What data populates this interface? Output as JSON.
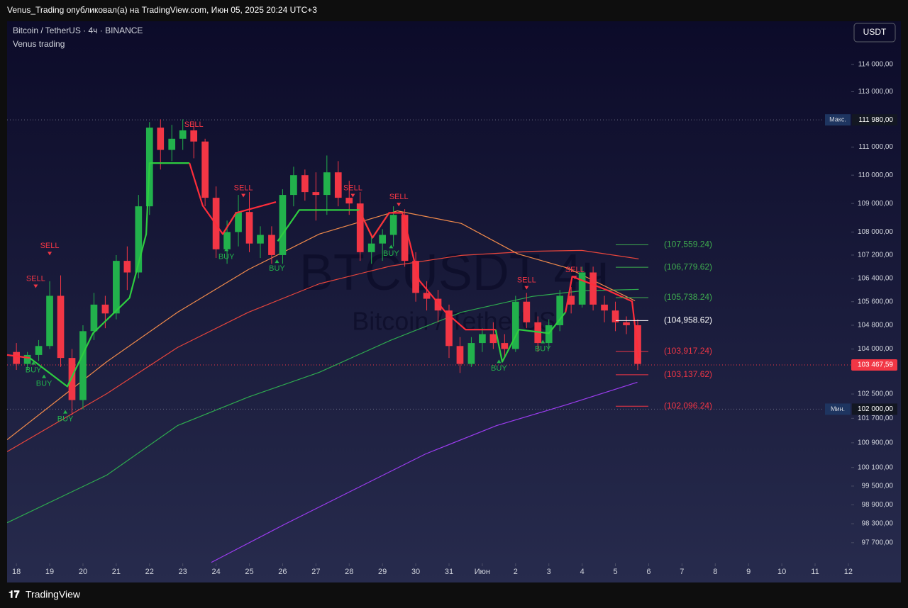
{
  "header": {
    "text": "Venus_Trading опубликовал(а) на TradingView.com, Июн 05, 2025 20:24 UTC+3"
  },
  "footer": {
    "brand": "TradingView"
  },
  "chart_data": {
    "type": "candlestick",
    "title": "Bitcoin / TetherUS · 4ч · BINANCE",
    "subtitle": "Venus trading",
    "currency": "USDT",
    "watermark": "BTCUSDT 4ч",
    "watermark_sub": "Bitcoin / TetherUS",
    "log_scale": true,
    "xlim": [
      -0.28,
      25.3
    ],
    "ylim": [
      97050,
      115600
    ],
    "xticks": [
      {
        "value": 0,
        "label": "18"
      },
      {
        "value": 1,
        "label": "19"
      },
      {
        "value": 2,
        "label": "20"
      },
      {
        "value": 3,
        "label": "21"
      },
      {
        "value": 4,
        "label": "22"
      },
      {
        "value": 5,
        "label": "23"
      },
      {
        "value": 6,
        "label": "24"
      },
      {
        "value": 7,
        "label": "25"
      },
      {
        "value": 8,
        "label": "26"
      },
      {
        "value": 9,
        "label": "27"
      },
      {
        "value": 10,
        "label": "28"
      },
      {
        "value": 11,
        "label": "29"
      },
      {
        "value": 12,
        "label": "30"
      },
      {
        "value": 13,
        "label": "31"
      },
      {
        "value": 14,
        "label": "Июн"
      },
      {
        "value": 15,
        "label": "2"
      },
      {
        "value": 16,
        "label": "3"
      },
      {
        "value": 17,
        "label": "4"
      },
      {
        "value": 18,
        "label": "5"
      },
      {
        "value": 19,
        "label": "6"
      },
      {
        "value": 20,
        "label": "7"
      },
      {
        "value": 21,
        "label": "8"
      },
      {
        "value": 22,
        "label": "9"
      },
      {
        "value": 23,
        "label": "10"
      },
      {
        "value": 24,
        "label": "11"
      },
      {
        "value": 25,
        "label": "12"
      }
    ],
    "yticks": [
      {
        "value": 114000,
        "label": "114 000,00"
      },
      {
        "value": 113000,
        "label": "113 000,00"
      },
      {
        "value": 111000,
        "label": "111 000,00"
      },
      {
        "value": 110000,
        "label": "110 000,00"
      },
      {
        "value": 109000,
        "label": "109 000,00"
      },
      {
        "value": 108000,
        "label": "108 000,00"
      },
      {
        "value": 107200,
        "label": "107 200,00"
      },
      {
        "value": 106400,
        "label": "106 400,00"
      },
      {
        "value": 105600,
        "label": "105 600,00"
      },
      {
        "value": 104800,
        "label": "104 800,00"
      },
      {
        "value": 104000,
        "label": "104 000,00"
      },
      {
        "value": 102500,
        "label": "102 500,00"
      },
      {
        "value": 101700,
        "label": "101 700,00"
      },
      {
        "value": 100900,
        "label": "100 900,00"
      },
      {
        "value": 100100,
        "label": "100 100,00"
      },
      {
        "value": 99500,
        "label": "99 500,00"
      },
      {
        "value": 98900,
        "label": "98 900,00"
      },
      {
        "value": 98300,
        "label": "98 300,00"
      },
      {
        "value": 97700,
        "label": "97 700,00"
      }
    ],
    "up_color": "#22b14c",
    "down_color": "#f23645",
    "candles": {
      "x": [
        0,
        0.33,
        0.67,
        1,
        1.33,
        1.67,
        2,
        2.33,
        2.67,
        3,
        3.33,
        3.67,
        4,
        4.33,
        4.67,
        5,
        5.33,
        5.67,
        6,
        6.33,
        6.67,
        7,
        7.33,
        7.67,
        8,
        8.33,
        8.67,
        9,
        9.33,
        9.67,
        10,
        10.33,
        10.67,
        11,
        11.33,
        11.67,
        12,
        12.33,
        12.67,
        13,
        13.33,
        13.67,
        14,
        14.33,
        14.67,
        15,
        15.33,
        15.67,
        16,
        16.33,
        16.67,
        17,
        17.33,
        17.67,
        18,
        18.33,
        18.67
      ],
      "open": [
        103900,
        103500,
        103800,
        104100,
        105800,
        103700,
        102300,
        104600,
        105500,
        105200,
        107000,
        106600,
        108900,
        111700,
        110900,
        111300,
        111600,
        111200,
        109200,
        107400,
        108000,
        108700,
        107600,
        107900,
        107200,
        109300,
        110000,
        109400,
        109300,
        110100,
        109200,
        109000,
        107300,
        107600,
        107900,
        108600,
        107000,
        105900,
        105700,
        105300,
        104100,
        103500,
        104200,
        104500,
        104200,
        104000,
        105600,
        104900,
        104200,
        104800,
        105800,
        105500,
        106600,
        105500,
        105300,
        104900,
        104800
      ],
      "high": [
        104200,
        103900,
        104300,
        106300,
        106500,
        104000,
        104800,
        105900,
        105800,
        107200,
        107500,
        109300,
        111900,
        112000,
        111800,
        112000,
        111900,
        111300,
        109600,
        108400,
        109300,
        109400,
        108200,
        108200,
        109500,
        110300,
        110200,
        110100,
        110700,
        110500,
        109800,
        109400,
        107900,
        108100,
        108900,
        108800,
        107300,
        106300,
        106000,
        105500,
        104400,
        104400,
        104700,
        104900,
        104500,
        105800,
        105900,
        105100,
        105000,
        106000,
        106100,
        106800,
        106800,
        105800,
        105600,
        105100,
        105000
      ],
      "low": [
        103300,
        103300,
        103600,
        104000,
        103400,
        101800,
        102000,
        104300,
        104700,
        105000,
        106000,
        106400,
        108600,
        110200,
        110500,
        110900,
        110600,
        108900,
        107100,
        106900,
        107500,
        107300,
        107100,
        106900,
        106900,
        108900,
        109100,
        108400,
        108600,
        108900,
        108600,
        107000,
        106900,
        107000,
        107500,
        106800,
        105600,
        105300,
        104900,
        103700,
        103200,
        103400,
        103900,
        104000,
        103700,
        103900,
        104700,
        103900,
        104000,
        104600,
        105200,
        105400,
        105300,
        104900,
        104600,
        104500,
        103300
      ],
      "close": [
        103500,
        103800,
        104100,
        105800,
        103700,
        102300,
        104600,
        105500,
        105200,
        107000,
        106600,
        108900,
        111700,
        110900,
        111300,
        111600,
        111200,
        109200,
        107400,
        108000,
        108700,
        107600,
        107900,
        107200,
        109300,
        110000,
        109400,
        109300,
        110100,
        109200,
        109000,
        107300,
        107600,
        107900,
        108600,
        107000,
        105900,
        105700,
        105300,
        104100,
        103500,
        104200,
        104500,
        104200,
        104000,
        105600,
        104900,
        104200,
        104800,
        105800,
        105500,
        106600,
        105500,
        105300,
        104900,
        104800,
        103500
      ]
    },
    "series": [
      {
        "color": "#2eaa4f",
        "x": [
          -0.28,
          2.71,
          4.84,
          6.97,
          9.1,
          11.24,
          13.37,
          15.5,
          16.99,
          18.7
        ],
        "values": [
          98330,
          99850,
          101460,
          102400,
          103220,
          104290,
          105240,
          105780,
          105970,
          106020
        ]
      },
      {
        "color": "#e8453c",
        "x": [
          -0.28,
          2.71,
          4.84,
          6.97,
          9.1,
          11.24,
          13.37,
          15.5,
          16.99,
          18.7
        ],
        "values": [
          100610,
          102510,
          104050,
          105240,
          106210,
          106820,
          107190,
          107330,
          107360,
          107070
        ]
      },
      {
        "color": "#f08a4b",
        "x": [
          -0.28,
          2.71,
          4.84,
          6.97,
          9.1,
          11.45,
          13.37,
          15.07,
          16.57,
          18.59
        ],
        "values": [
          101000,
          103570,
          105240,
          106700,
          107930,
          108740,
          108300,
          107240,
          106750,
          105630
        ]
      },
      {
        "color": "#9c3cf0",
        "x": [
          5.86,
          8.04,
          10.17,
          12.3,
          14.43,
          16.57,
          18.66
        ],
        "values": [
          97080,
          98270,
          99400,
          100540,
          101460,
          102160,
          102890
        ]
      }
    ],
    "supertrend": {
      "x": [
        -0.28,
        0.4,
        1.53,
        2.3,
        3.4,
        3.9,
        4.0,
        5.2,
        5.6,
        6.2,
        6.6,
        7.8,
        7.85,
        8.5,
        10.3,
        10.7,
        11.2,
        11.6,
        12.1,
        12.9,
        13.5,
        14.4,
        14.6,
        15.1,
        16.0,
        16.5,
        16.7,
        17.8,
        18.5,
        18.7
      ],
      "series": [
        {
          "color": "#2ecc40",
          "values": [
            null,
            103700,
            102750,
            104530,
            105730,
            107930,
            110430,
            110430,
            null,
            107930,
            108670,
            null,
            107680,
            108770,
            108770,
            107800,
            108670,
            null,
            null,
            null,
            null,
            104650,
            103570,
            104650,
            104530,
            105240,
            null,
            null,
            null,
            null
          ]
        },
        {
          "color": "#ff2d3a",
          "values": [
            103800,
            103700,
            null,
            null,
            null,
            null,
            null,
            110430,
            108920,
            107930,
            108670,
            109050,
            null,
            null,
            108770,
            107800,
            108670,
            108670,
            106330,
            105240,
            104650,
            104650,
            null,
            null,
            null,
            105240,
            106460,
            105970,
            105610,
            103700
          ]
        }
      ]
    },
    "signals": [
      {
        "label": "SELL",
        "x": 0.58,
        "y": 106380
      },
      {
        "label": "SELL",
        "x": 1.0,
        "y": 107510
      },
      {
        "label": "SELL",
        "x": 5.33,
        "y": 111800
      },
      {
        "label": "SELL",
        "x": 6.82,
        "y": 109540
      },
      {
        "label": "SELL",
        "x": 10.11,
        "y": 109540
      },
      {
        "label": "SELL",
        "x": 11.49,
        "y": 109220
      },
      {
        "label": "SELL",
        "x": 15.33,
        "y": 106330
      },
      {
        "label": "SELL",
        "x": 16.78,
        "y": 106680
      },
      {
        "label": "BUY",
        "x": 0.51,
        "y": 103290
      },
      {
        "label": "BUY",
        "x": 0.83,
        "y": 102840
      },
      {
        "label": "BUY",
        "x": 1.47,
        "y": 101670
      },
      {
        "label": "BUY",
        "x": 6.31,
        "y": 107140
      },
      {
        "label": "BUY",
        "x": 7.83,
        "y": 106730
      },
      {
        "label": "BUY",
        "x": 11.26,
        "y": 107240
      },
      {
        "label": "BUY",
        "x": 14.5,
        "y": 103340
      },
      {
        "label": "BUY",
        "x": 15.82,
        "y": 104000
      }
    ],
    "levels": [
      {
        "value": 107559.24,
        "label": "(107,559.24)",
        "color": "#3fae4f"
      },
      {
        "value": 106779.62,
        "label": "(106,779.62)",
        "color": "#3fae4f"
      },
      {
        "value": 105738.24,
        "label": "(105,738.24)",
        "color": "#3fae4f"
      },
      {
        "value": 104958.62,
        "label": "(104,958.62)",
        "color": "#ffffff"
      },
      {
        "value": 103917.24,
        "label": "(103,917.24)",
        "color": "#f23645"
      },
      {
        "value": 103137.62,
        "label": "(103,137.62)",
        "color": "#f23645"
      },
      {
        "value": 102096.24,
        "label": "(102,096.24)",
        "color": "#f23645"
      }
    ],
    "last_price": {
      "value": 103467.59,
      "label": "103 467,59"
    },
    "high_marker": {
      "tag": "Макс.",
      "value": 111980,
      "label": "111 980,00"
    },
    "low_marker": {
      "tag": "Мин.",
      "value": 102000,
      "label": "102 000,00"
    }
  }
}
